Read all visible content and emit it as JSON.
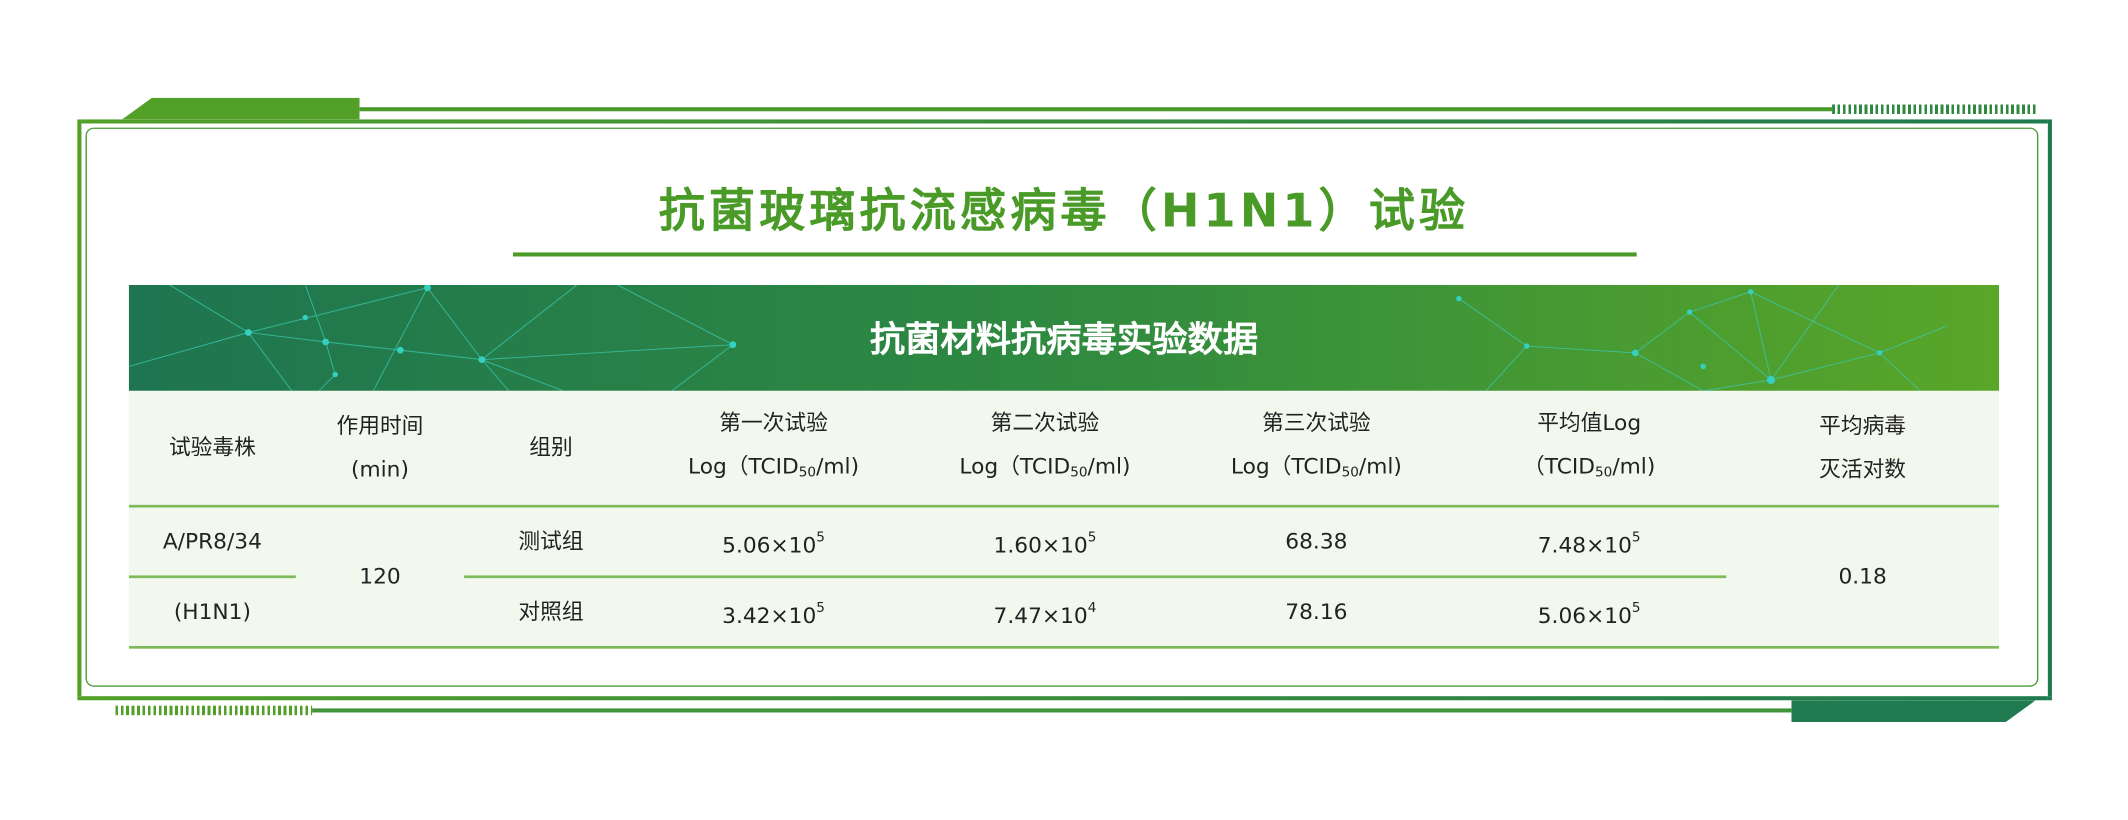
{
  "title": "抗菌玻璃抗流感病毒（H1N1）试验",
  "banner_title": "抗菌材料抗病毒实验数据",
  "colors": {
    "primary_green": "#4a9a28",
    "dark_green": "#1f7a4f",
    "table_bg": "#f3f8ef",
    "line": "#7dbb5a"
  },
  "table": {
    "headers": [
      {
        "l1": "试验毒株",
        "l2": ""
      },
      {
        "l1": "作用时间",
        "l2": "(min)"
      },
      {
        "l1": "组别",
        "l2": ""
      },
      {
        "l1": "第一次试验",
        "l2a": "Log（TCID",
        "sub": "50",
        "l2b": "/ml)"
      },
      {
        "l1": "第二次试验",
        "l2a": "Log（TCID",
        "sub": "50",
        "l2b": "/ml)"
      },
      {
        "l1": "第三次试验",
        "l2a": "Log（TCID",
        "sub": "50",
        "l2b": "/ml)"
      },
      {
        "l1": "平均值Log",
        "l2a": "（TCID",
        "sub": "50",
        "l2b": "/ml)"
      },
      {
        "l1": "平均病毒",
        "l2": "灭活对数"
      }
    ],
    "strain_l1": "A/PR8/34",
    "strain_l2": "(H1N1)",
    "time": "120",
    "reduction": "0.18",
    "rows": [
      {
        "group": "测试组",
        "t1": {
          "m": "5.06×10",
          "e": "5"
        },
        "t2": {
          "m": "1.60×10",
          "e": "5"
        },
        "t3": "68.38",
        "avg": {
          "m": "7.48×10",
          "e": "5"
        }
      },
      {
        "group": "对照组",
        "t1": {
          "m": "3.42×10",
          "e": "5"
        },
        "t2": {
          "m": "7.47×10",
          "e": "4"
        },
        "t3": "78.16",
        "avg": {
          "m": "5.06×10",
          "e": "5"
        }
      }
    ]
  }
}
